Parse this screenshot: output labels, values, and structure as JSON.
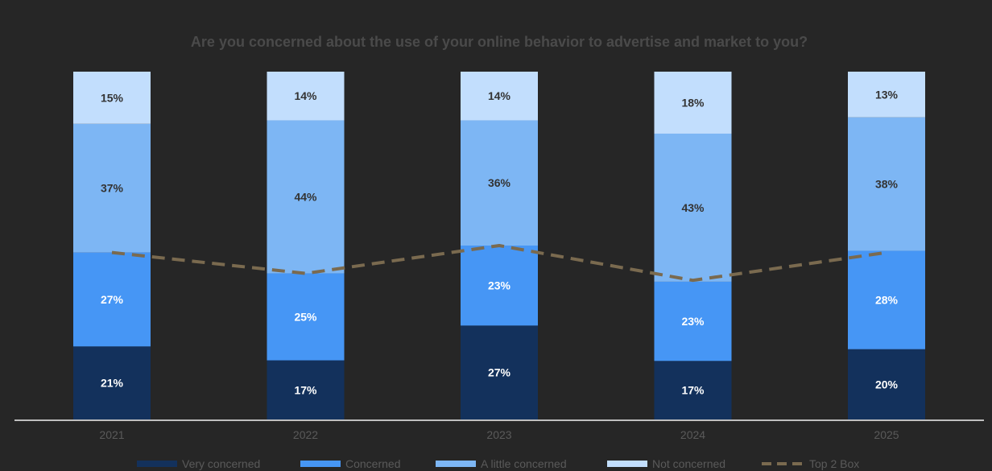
{
  "chart_data": {
    "type": "bar",
    "stacked": true,
    "title": "Are you concerned about the use of your online behavior to advertise and market to you?",
    "categories": [
      "2021",
      "2022",
      "2023",
      "2024",
      "2025"
    ],
    "series": [
      {
        "name": "Very concerned",
        "values": [
          21,
          17,
          27,
          17,
          20
        ],
        "color": "#13315c",
        "label_color": "#ffffff"
      },
      {
        "name": "Concerned",
        "values": [
          27,
          25,
          23,
          23,
          28
        ],
        "color": "#4696f5",
        "label_color": "#ffffff"
      },
      {
        "name": "A little concerned",
        "values": [
          37,
          44,
          36,
          43,
          38
        ],
        "color": "#7db6f4",
        "label_color": "#333333"
      },
      {
        "name": "Not concerned",
        "values": [
          15,
          14,
          14,
          18,
          13
        ],
        "color": "#c2defd",
        "label_color": "#333333"
      }
    ],
    "line_series": {
      "name": "Top 2 Box",
      "values": [
        48,
        42,
        50,
        40,
        48
      ],
      "color": "#7a6a4f",
      "style": "dashed"
    },
    "value_label_suffix": "%",
    "ylim": [
      0,
      100
    ],
    "grid": false,
    "legend": "bottom",
    "colors": {
      "background": "#262626",
      "axis": "#bfbfbf",
      "text": "#5a5a5a",
      "title": "#4a4a4a"
    }
  }
}
